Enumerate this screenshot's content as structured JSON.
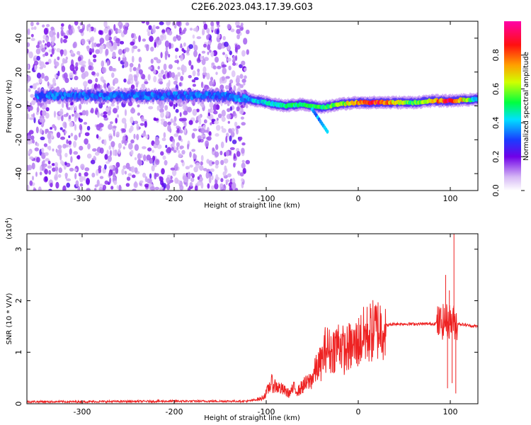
{
  "title": "C2E6.2023.043.17.39.G03",
  "chart_data": [
    {
      "type": "heatmap",
      "xlabel": "Height of straight line (km)",
      "ylabel": "Frequency (Hz)",
      "xlim": [
        -360,
        130
      ],
      "ylim": [
        -50,
        50
      ],
      "x_ticks": [
        -300,
        -200,
        -100,
        0,
        100
      ],
      "y_ticks": [
        -40,
        -20,
        0,
        20,
        40
      ],
      "colorbar": {
        "label": "Normalized spectral amplitude",
        "range": [
          0,
          1
        ],
        "ticks": [
          "0.0",
          "0.2",
          "0.4",
          "0.6",
          "0.8"
        ],
        "colors": [
          "#ffffff",
          "#c8a2f0",
          "#6a00e0",
          "#2020ff",
          "#00ffff",
          "#00ff00",
          "#ffff00",
          "#ff8000",
          "#ff0000",
          "#ff00a0"
        ]
      },
      "ridge": {
        "x": [
          -350,
          -300,
          -250,
          -200,
          -150,
          -120,
          -100,
          -80,
          -60,
          -40,
          -20,
          0,
          20,
          40,
          60,
          80,
          100,
          130
        ],
        "freq": [
          6,
          6,
          6,
          6,
          6,
          4,
          2,
          0,
          1,
          -1,
          1,
          2,
          2,
          2,
          2,
          3,
          3,
          4
        ],
        "amplitude": [
          0.35,
          0.35,
          0.35,
          0.35,
          0.35,
          0.4,
          0.45,
          0.5,
          0.5,
          0.55,
          0.6,
          0.8,
          0.9,
          0.7,
          0.55,
          0.7,
          0.95,
          0.4
        ]
      },
      "noise_region_x": [
        -360,
        -120
      ]
    },
    {
      "type": "line",
      "xlabel": "Height of straight line (km)",
      "ylabel": "SNR (10 * V/V)",
      "y_exponent_label": "(x10",
      "y_exponent": "4",
      "xlim": [
        -360,
        130
      ],
      "ylim": [
        0,
        3.3
      ],
      "x_ticks": [
        -300,
        -200,
        -100,
        0,
        100
      ],
      "y_ticks": [
        0,
        1,
        2,
        3
      ],
      "color": "#ee2222",
      "series": [
        {
          "x": [
            -360,
            -300,
            -200,
            -120,
            -105,
            -100,
            -95,
            -90,
            -85,
            -80,
            -75,
            -70,
            -65,
            -60,
            -55,
            -50,
            -45,
            -40,
            -35,
            -30,
            -25,
            -20,
            -15,
            -10,
            -5,
            0,
            5,
            10,
            20,
            30,
            40,
            60,
            80,
            90,
            95,
            100,
            105,
            110,
            120,
            130
          ],
          "y": [
            0.04,
            0.04,
            0.05,
            0.05,
            0.1,
            0.2,
            0.4,
            0.35,
            0.3,
            0.25,
            0.2,
            0.3,
            0.25,
            0.35,
            0.4,
            0.5,
            0.7,
            0.8,
            1.1,
            1.0,
            1.1,
            1.2,
            1.0,
            1.1,
            1.1,
            1.2,
            1.3,
            1.35,
            1.45,
            1.52,
            1.55,
            1.55,
            1.55,
            1.58,
            1.6,
            1.6,
            1.58,
            1.55,
            1.52,
            1.5
          ]
        }
      ],
      "spikes": [
        {
          "x": 95,
          "y": 2.5
        },
        {
          "x": 97,
          "y": 0.3
        },
        {
          "x": 99,
          "y": 2.2
        },
        {
          "x": 102,
          "y": 0.4
        },
        {
          "x": 104,
          "y": 3.3
        },
        {
          "x": 106,
          "y": 0.2
        }
      ]
    }
  ]
}
